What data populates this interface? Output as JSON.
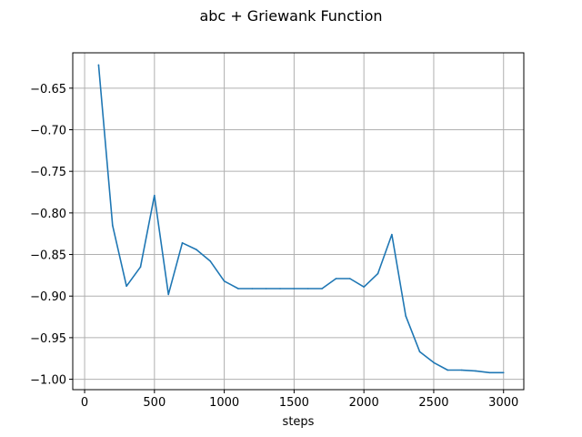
{
  "chart_data": {
    "type": "line",
    "title": "abc + Griewank Function",
    "xlabel": "steps",
    "ylabel": "",
    "xlim": [
      -85,
      3145
    ],
    "ylim": [
      -1.0125,
      -0.6075
    ],
    "xticks": [
      0,
      500,
      1000,
      1500,
      2000,
      2500,
      3000
    ],
    "xtick_labels": [
      "0",
      "500",
      "1000",
      "1500",
      "2000",
      "2500",
      "3000"
    ],
    "yticks": [
      -1.0,
      -0.95,
      -0.9,
      -0.85,
      -0.8,
      -0.75,
      -0.7,
      -0.65
    ],
    "ytick_labels": [
      "−1.00",
      "−0.95",
      "−0.90",
      "−0.85",
      "−0.80",
      "−0.75",
      "−0.70",
      "−0.65"
    ],
    "grid": true,
    "series": [
      {
        "color": "#1f77b4",
        "x": [
          100,
          200,
          300,
          400,
          500,
          600,
          700,
          800,
          900,
          1000,
          1100,
          1200,
          1300,
          1400,
          1500,
          1600,
          1700,
          1800,
          1900,
          2000,
          2100,
          2200,
          2300,
          2400,
          2500,
          2600,
          2700,
          2800,
          2900,
          3000
        ],
        "y": [
          -0.622,
          -0.815,
          -0.888,
          -0.865,
          -0.779,
          -0.898,
          -0.836,
          -0.844,
          -0.858,
          -0.882,
          -0.891,
          -0.891,
          -0.891,
          -0.891,
          -0.891,
          -0.891,
          -0.891,
          -0.879,
          -0.879,
          -0.889,
          -0.873,
          -0.826,
          -0.924,
          -0.967,
          -0.98,
          -0.989,
          -0.989,
          -0.99,
          -0.992,
          -0.992
        ]
      }
    ]
  }
}
